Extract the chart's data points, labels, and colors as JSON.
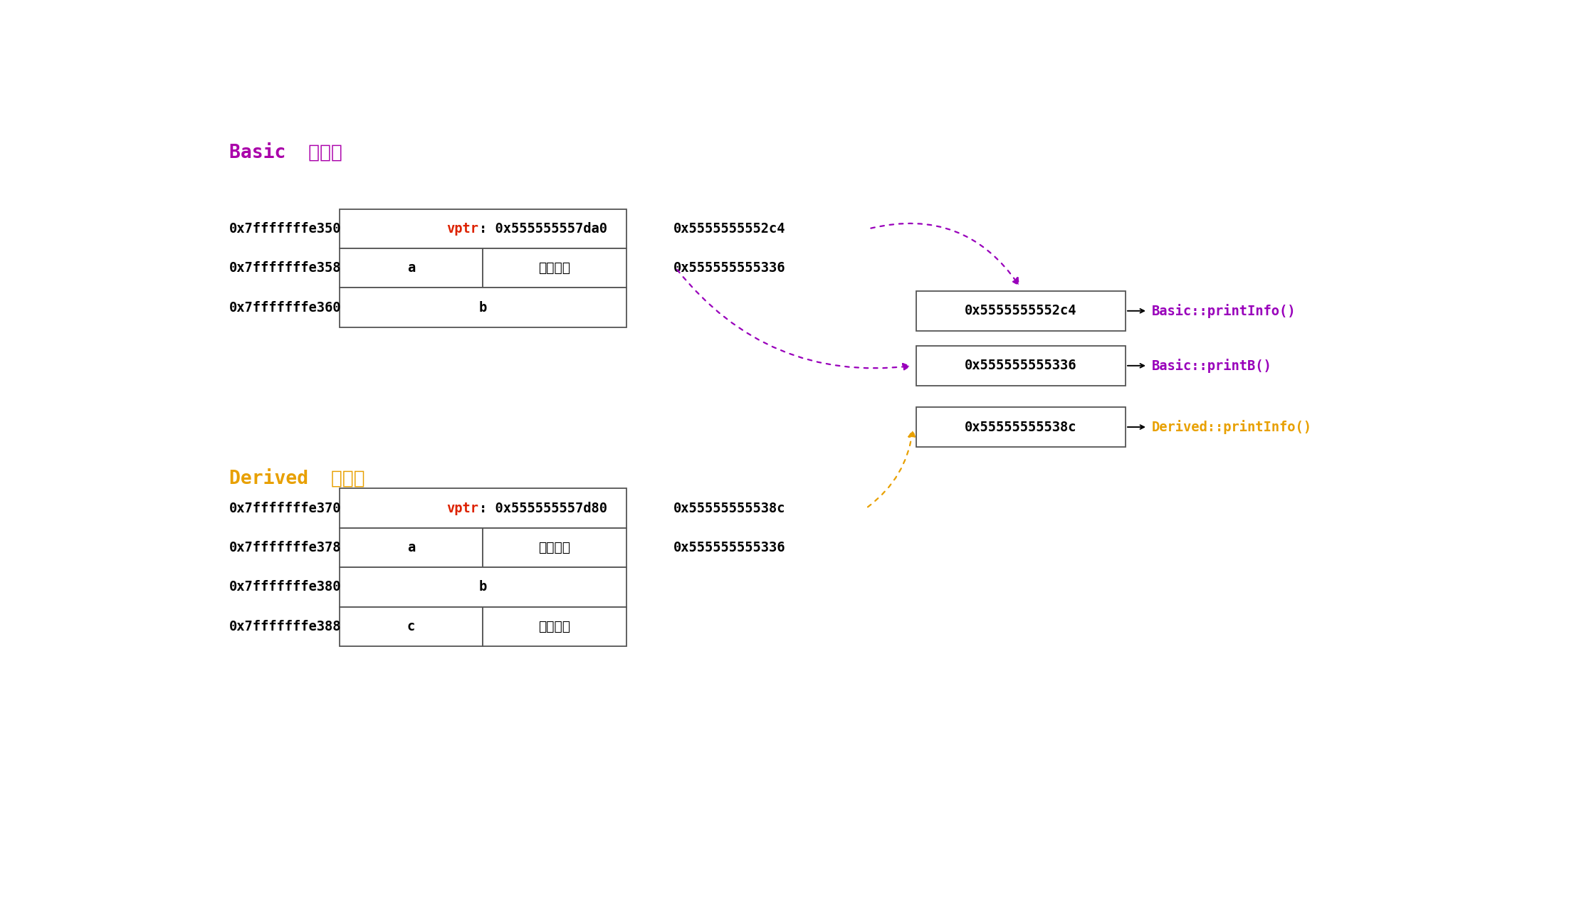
{
  "bg_color": "#ffffff",
  "title_basic": "Basic  类对象",
  "title_derived": "Derived  类对象",
  "title_basic_color": "#aa00aa",
  "title_derived_color": "#e8a000",
  "basic_addresses": [
    "0x7fffffffe350",
    "0x7fffffffe358",
    "0x7fffffffe360"
  ],
  "derived_addresses": [
    "0x7fffffffe370",
    "0x7fffffffe378",
    "0x7fffffffe380",
    "0x7fffffffe388"
  ],
  "basic_vptr_red": "vptr",
  "basic_vptr_black": ": 0x555555557da0",
  "derived_vptr_red": "vptr",
  "derived_vptr_black": ": 0x555555557d80",
  "vptr_color": "#dd2200",
  "basic_vtable_box_labels": [
    "0x5555555552c4",
    "0x555555555336"
  ],
  "derived_vtable_box_labels": [
    "0x55555555538c"
  ],
  "basic_vtable_addr_label1": "0x5555555552c4",
  "basic_vtable_addr_label2": "0x555555555336",
  "derived_vtable_addr_label1": "0x55555555538c",
  "derived_vtable_addr_label2": "0x555555555336",
  "func_basic_printInfo": "Basic::printInfo()",
  "func_basic_printB": "Basic::printB()",
  "func_derived_printInfo": "Derived::printInfo()",
  "func_color_purple": "#9900bb",
  "func_color_orange": "#e8a000",
  "arrow_purple": "#9900bb",
  "arrow_orange": "#e8a000",
  "black": "#000000",
  "box_edge_color": "#555555",
  "neimem_duiqi": "内存对齐"
}
